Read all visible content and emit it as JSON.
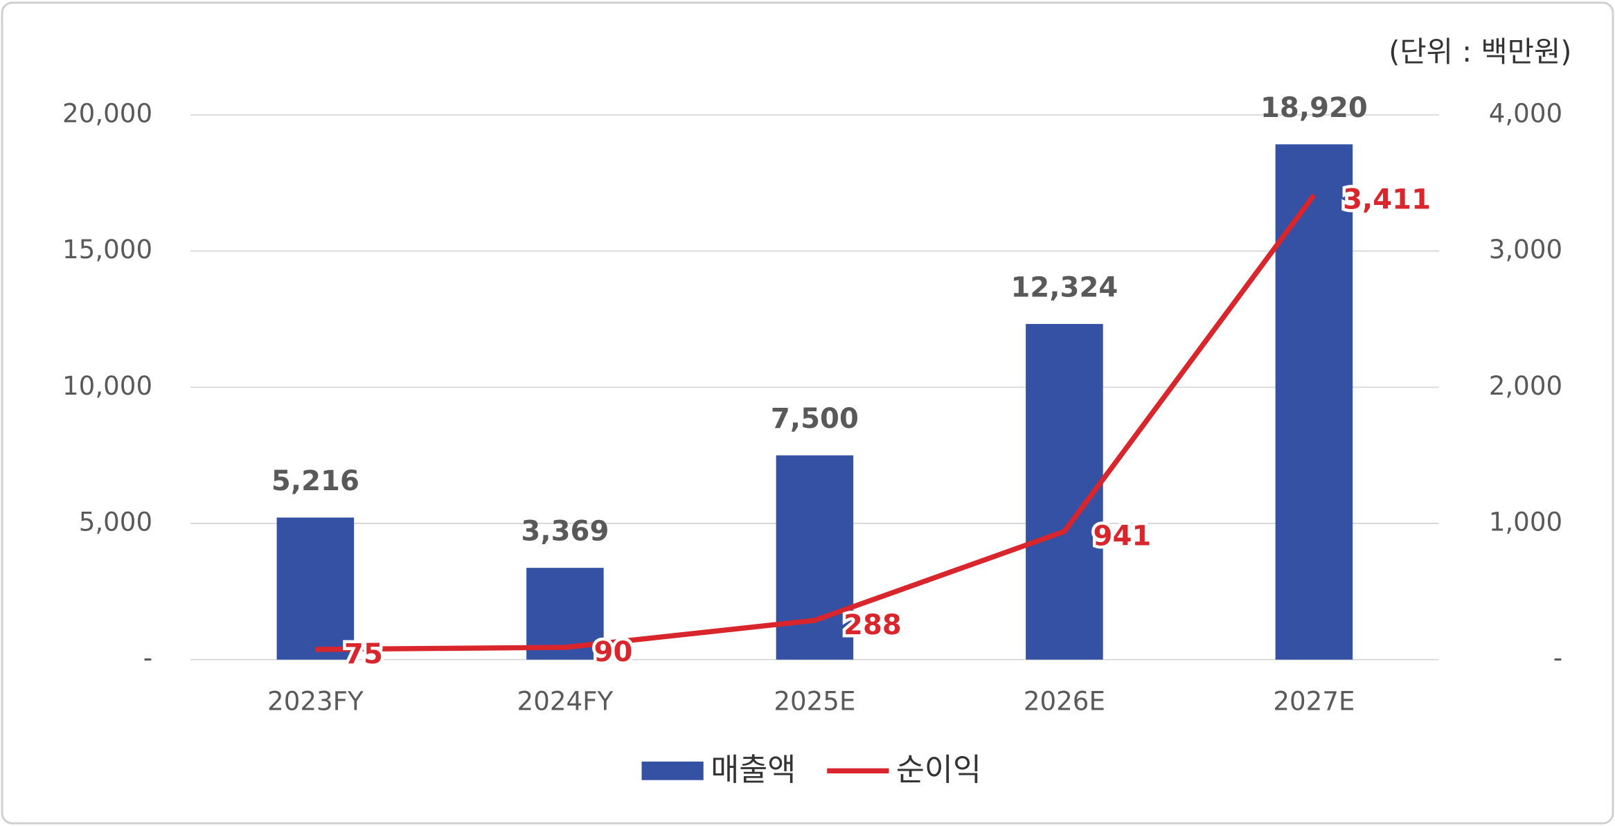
{
  "chart_data": {
    "type": "bar_line",
    "annotation": "(단위 : 백만원)",
    "categories": [
      "2023FY",
      "2024FY",
      "2025E",
      "2026E",
      "2027E"
    ],
    "series": [
      {
        "name": "매출액",
        "type": "bar",
        "color": "#3451a3",
        "values": [
          5216,
          3369,
          7500,
          12324,
          18920
        ],
        "value_labels": [
          "5,216",
          "3,369",
          "7,500",
          "12,324",
          "18,920"
        ]
      },
      {
        "name": "순이익",
        "type": "line",
        "axis": "y2",
        "color": "#d9262c",
        "values": [
          75,
          90,
          288,
          941,
          3411
        ],
        "value_labels": [
          "75",
          "90",
          "288",
          "941",
          "3,411"
        ]
      }
    ],
    "ylim": [
      0,
      20000
    ],
    "yticks": [
      {
        "value": 0,
        "label": "-"
      },
      {
        "value": 5000,
        "label": "5,000"
      },
      {
        "value": 10000,
        "label": "10,000"
      },
      {
        "value": 15000,
        "label": "15,000"
      },
      {
        "value": 20000,
        "label": "20,000"
      }
    ],
    "y2lim": [
      0,
      4000
    ],
    "y2ticks": [
      {
        "value": 0,
        "label": "-"
      },
      {
        "value": 1000,
        "label": "1,000"
      },
      {
        "value": 2000,
        "label": "2,000"
      },
      {
        "value": 3000,
        "label": "3,000"
      },
      {
        "value": 4000,
        "label": "4,000"
      }
    ],
    "grid": true,
    "legend": "bottom"
  }
}
